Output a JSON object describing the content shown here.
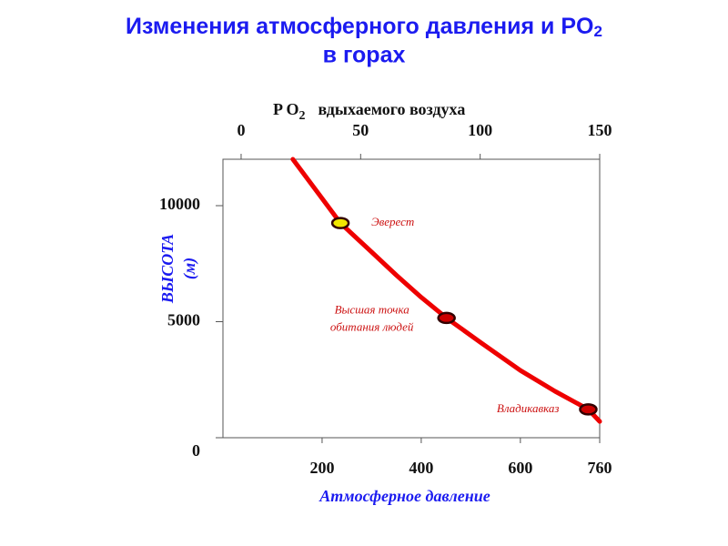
{
  "chart_data": {
    "type": "line",
    "title": "Изменения атмосферного давления и PO",
    "title_subscript": "2",
    "title_line2": "в горах",
    "x2label": "P O",
    "x2label_subscript": "2",
    "x2label_rest": "вдыхаемого воздуха",
    "ylabel": [
      "ВЫСОТА",
      "(м)"
    ],
    "xlabel": "Атмосферное давление",
    "x": [
      141,
      190,
      237,
      300,
      350,
      400,
      451,
      520,
      600,
      670,
      737,
      760
    ],
    "series": [
      {
        "color": "#ee0000",
        "values": [
          12000,
          10600,
          9250,
          8000,
          7000,
          6050,
          5160,
          4100,
          2900,
          2000,
          1220,
          700
        ]
      }
    ],
    "points": {
      "x": [
        237,
        451,
        737
      ],
      "values": [
        9250,
        5160,
        1220
      ],
      "colors": [
        "#f2e600",
        "#cc0000",
        "#cc0000"
      ],
      "labels": [
        [
          "Эверест"
        ],
        [
          "Высшая точка",
          "обитания людей"
        ],
        [
          "Владикавказ"
        ]
      ]
    },
    "xlim": [
      0,
      760
    ],
    "xticks": [
      200,
      400,
      600,
      760
    ],
    "ylim": [
      0,
      12000
    ],
    "yticks": [
      0,
      5000,
      10000
    ],
    "x2lim": [
      -7.6,
      150
    ],
    "x2ticks": [
      0,
      50,
      100,
      150
    ],
    "grid": false
  }
}
